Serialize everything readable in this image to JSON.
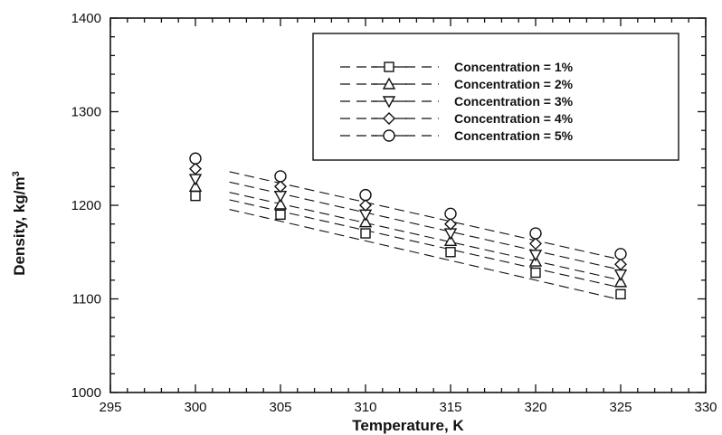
{
  "chart_data": {
    "type": "scatter",
    "title": "",
    "xlabel": "Temperature, K",
    "ylabel": "Density, kg/m",
    "ylabel_sup": "3",
    "xlim": [
      295,
      330
    ],
    "ylim": [
      1000,
      1400
    ],
    "xticks": [
      295,
      300,
      305,
      310,
      315,
      320,
      325,
      330
    ],
    "yticks": [
      1000,
      1100,
      1200,
      1300,
      1400
    ],
    "grid": false,
    "legend_placement": "top-right",
    "x": [
      300,
      305,
      310,
      315,
      320,
      325
    ],
    "series": [
      {
        "name": "Concentration = 1%",
        "marker": "square",
        "values": [
          1210,
          1190,
          1170,
          1150,
          1128,
          1105
        ]
      },
      {
        "name": "Concentration = 2%",
        "marker": "triangle-up",
        "values": [
          1220,
          1201,
          1182,
          1162,
          1140,
          1118
        ]
      },
      {
        "name": "Concentration = 3%",
        "marker": "triangle-down",
        "values": [
          1228,
          1210,
          1190,
          1170,
          1147,
          1126
        ]
      },
      {
        "name": "Concentration = 4%",
        "marker": "diamond",
        "values": [
          1239,
          1220,
          1200,
          1180,
          1159,
          1137
        ]
      },
      {
        "name": "Concentration = 5%",
        "marker": "circle",
        "values": [
          1250,
          1231,
          1211,
          1191,
          1170,
          1148
        ]
      }
    ]
  }
}
